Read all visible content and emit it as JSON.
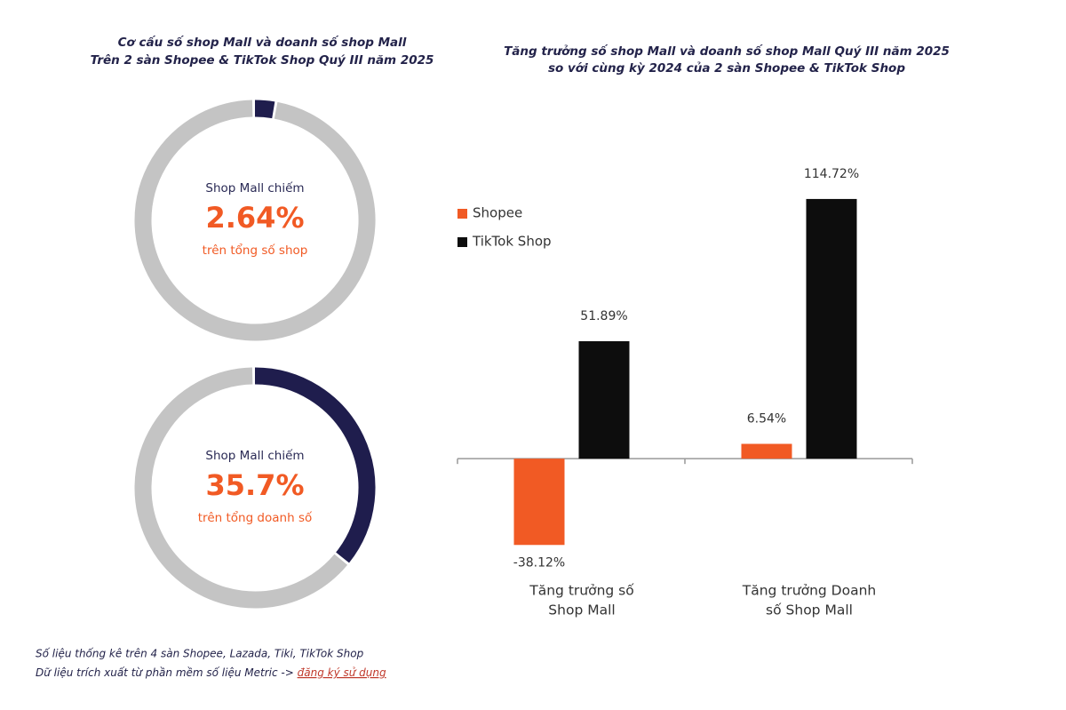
{
  "chart_data": [
    {
      "type": "donut",
      "title": [
        "Cơ cấu số shop Mall và doanh số shop Mall",
        "Trên 2 sàn Shopee & TikTok Shop Quý III năm 2025"
      ],
      "center_label": "Shop Mall chiếm",
      "values": [
        2.64
      ],
      "value_labels": [
        "2.64%"
      ],
      "sub_label": "trên tổng số shop",
      "color": "#1f1d4d",
      "rest_color": "#c4c4c4"
    },
    {
      "type": "donut",
      "center_label": "Shop Mall chiếm",
      "values": [
        35.7
      ],
      "value_labels": [
        "35.7%"
      ],
      "sub_label": "trên tổng doanh số",
      "color": "#1f1d4d",
      "rest_color": "#c4c4c4"
    },
    {
      "type": "bar",
      "title": [
        "Tăng trưởng số shop Mall và doanh số shop Mall Quý III năm 2025",
        "so với cùng kỳ 2024 của 2 sàn Shopee & TikTok Shop"
      ],
      "categories": [
        [
          "Tăng trưởng số",
          "Shop Mall"
        ],
        [
          "Tăng trưởng Doanh",
          "số Shop Mall"
        ]
      ],
      "series": [
        {
          "name": "Shopee",
          "color": "#f15a24",
          "values": [
            -38.12,
            6.54
          ],
          "value_labels": [
            "-38.12%",
            "6.54%"
          ]
        },
        {
          "name": "TikTok Shop",
          "color": "#0d0d0d",
          "values": [
            51.89,
            114.72
          ],
          "value_labels": [
            "51.89%",
            "114.72%"
          ]
        }
      ],
      "ylim": [
        -60,
        130
      ],
      "legend": "upper-left"
    }
  ],
  "footer": {
    "lines": [
      "Số liệu thống kê trên 4 sàn Shopee, Lazada, Tiki, TikTok Shop",
      "Dữ liệu trích xuất từ phần mềm số liệu Metric ->"
    ],
    "link": "đăng ký sử dụng"
  }
}
